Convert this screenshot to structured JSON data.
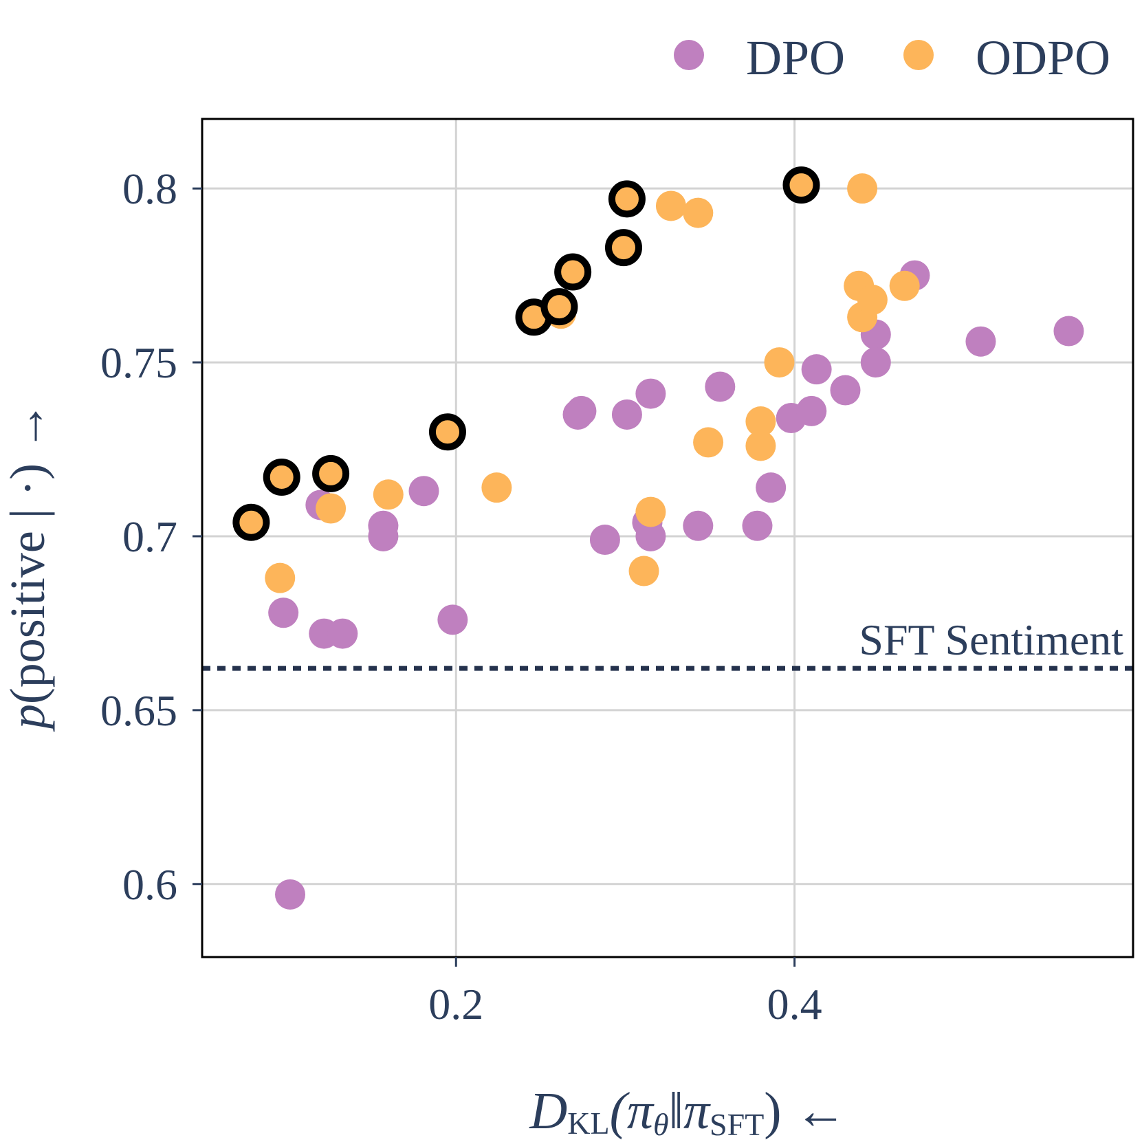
{
  "chart_data": {
    "type": "scatter",
    "xlim": [
      0.05,
      0.6
    ],
    "ylim": [
      0.579,
      0.82
    ],
    "x_ticks": [
      {
        "value": 0.2,
        "label": "0.2"
      },
      {
        "value": 0.4,
        "label": "0.4"
      }
    ],
    "y_ticks": [
      {
        "value": 0.6,
        "label": "0.6"
      },
      {
        "value": 0.65,
        "label": "0.65"
      },
      {
        "value": 0.7,
        "label": "0.7"
      },
      {
        "value": 0.75,
        "label": "0.75"
      },
      {
        "value": 0.8,
        "label": "0.8"
      }
    ],
    "xlabel": {
      "main": "D",
      "sub": "KL",
      "body": "(π",
      "body_sub": "θ",
      "body2": "‖π",
      "body2_sub": "SFT",
      "tail": ") ←"
    },
    "ylabel": {
      "italic": "p",
      "rest": "(positive | ·) →"
    },
    "grid": true,
    "legend": {
      "placement": "top-right"
    },
    "reference_line": {
      "y": 0.662,
      "label": "SFT Sentiment",
      "style": "dotted",
      "color": "#25324d"
    },
    "series": [
      {
        "name": "DPO",
        "color": "#bf80bf",
        "points": [
          [
            0.098,
            0.678
          ],
          [
            0.102,
            0.597
          ],
          [
            0.12,
            0.709
          ],
          [
            0.122,
            0.672
          ],
          [
            0.133,
            0.672
          ],
          [
            0.157,
            0.703
          ],
          [
            0.157,
            0.7
          ],
          [
            0.181,
            0.713
          ],
          [
            0.198,
            0.676
          ],
          [
            0.272,
            0.735
          ],
          [
            0.274,
            0.736
          ],
          [
            0.288,
            0.699
          ],
          [
            0.301,
            0.735
          ],
          [
            0.313,
            0.704
          ],
          [
            0.315,
            0.7
          ],
          [
            0.315,
            0.741
          ],
          [
            0.343,
            0.703
          ],
          [
            0.356,
            0.743
          ],
          [
            0.378,
            0.703
          ],
          [
            0.386,
            0.714
          ],
          [
            0.398,
            0.734
          ],
          [
            0.41,
            0.736
          ],
          [
            0.413,
            0.748
          ],
          [
            0.43,
            0.742
          ],
          [
            0.448,
            0.758
          ],
          [
            0.448,
            0.75
          ],
          [
            0.471,
            0.775
          ],
          [
            0.51,
            0.756
          ],
          [
            0.562,
            0.759
          ]
        ]
      },
      {
        "name": "ODPO",
        "color": "#fdb55a",
        "points": [
          [
            0.079,
            0.704
          ],
          [
            0.096,
            0.688
          ],
          [
            0.097,
            0.717
          ],
          [
            0.126,
            0.718
          ],
          [
            0.126,
            0.708
          ],
          [
            0.16,
            0.712
          ],
          [
            0.195,
            0.73
          ],
          [
            0.224,
            0.714
          ],
          [
            0.246,
            0.763
          ],
          [
            0.261,
            0.766
          ],
          [
            0.262,
            0.764
          ],
          [
            0.269,
            0.776
          ],
          [
            0.299,
            0.783
          ],
          [
            0.301,
            0.797
          ],
          [
            0.311,
            0.69
          ],
          [
            0.315,
            0.707
          ],
          [
            0.327,
            0.795
          ],
          [
            0.343,
            0.793
          ],
          [
            0.349,
            0.727
          ],
          [
            0.38,
            0.733
          ],
          [
            0.38,
            0.726
          ],
          [
            0.391,
            0.75
          ],
          [
            0.404,
            0.801
          ],
          [
            0.44,
            0.8
          ],
          [
            0.438,
            0.772
          ],
          [
            0.44,
            0.763
          ],
          [
            0.446,
            0.768
          ],
          [
            0.465,
            0.772
          ]
        ]
      }
    ],
    "highlighted": {
      "series": "ODPO",
      "points": [
        [
          0.079,
          0.704
        ],
        [
          0.097,
          0.717
        ],
        [
          0.126,
          0.718
        ],
        [
          0.195,
          0.73
        ],
        [
          0.246,
          0.763
        ],
        [
          0.261,
          0.766
        ],
        [
          0.269,
          0.776
        ],
        [
          0.299,
          0.783
        ],
        [
          0.301,
          0.797
        ],
        [
          0.404,
          0.801
        ]
      ]
    }
  }
}
